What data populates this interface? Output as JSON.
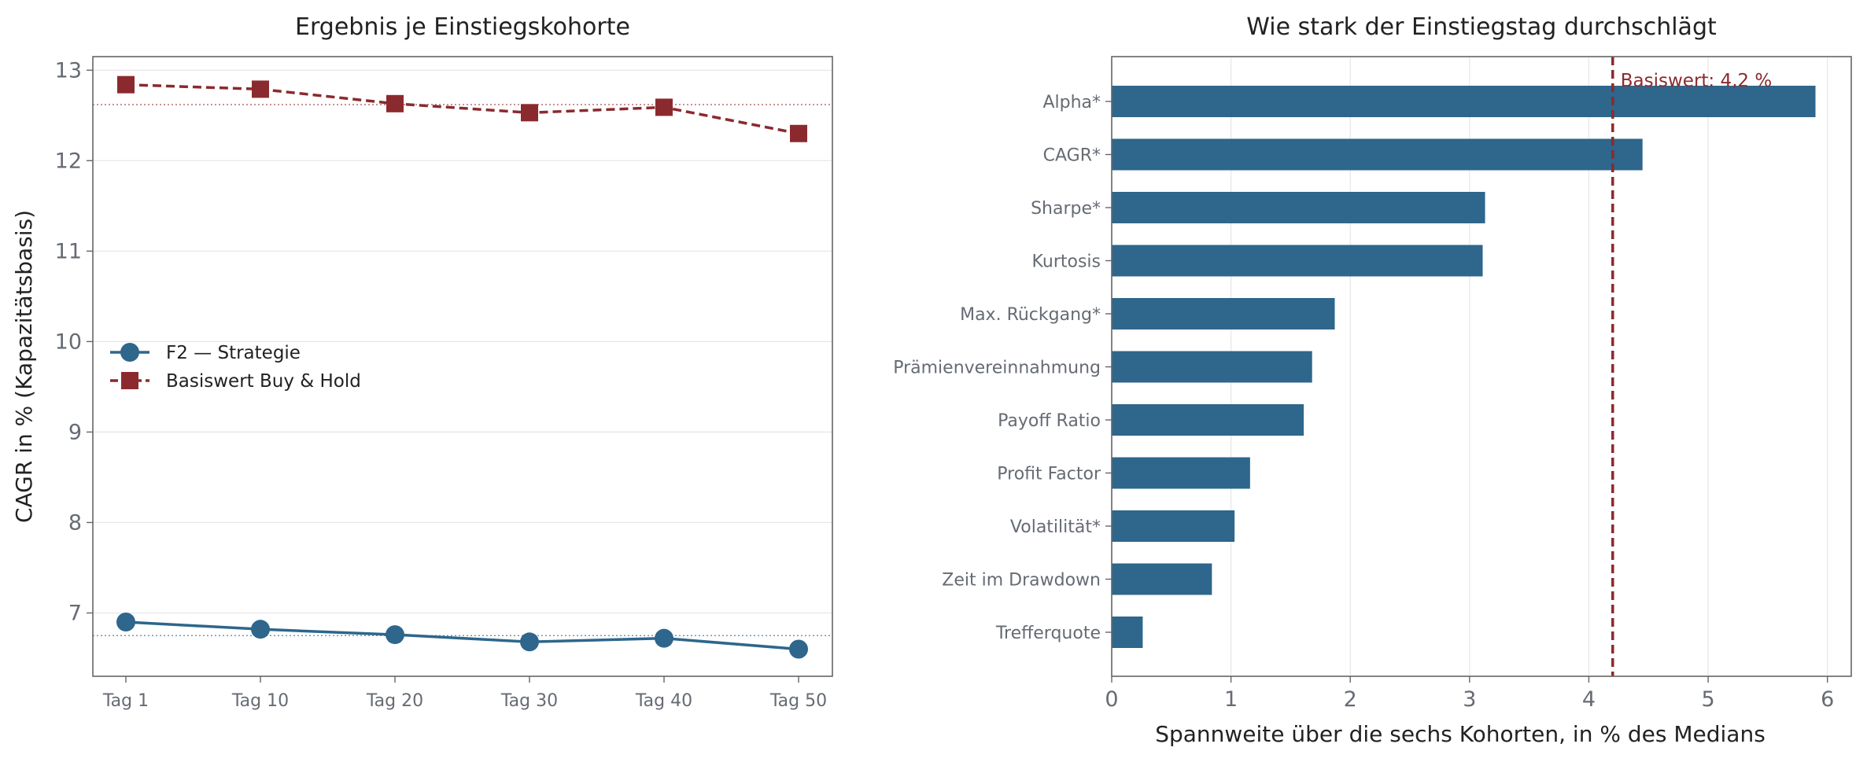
{
  "colors": {
    "strategy": "#2e668c",
    "benchmark": "#8b2a2e",
    "axis": "#666666",
    "tick_text": "#666b73",
    "grid": "#e6e6e6",
    "title_text": "#222222"
  },
  "chart_data": [
    {
      "type": "line",
      "title": "Ergebnis je Einstiegskohorte",
      "xlabel": "",
      "ylabel": "CAGR in % (Kapazitätsbasis)",
      "categories": [
        "Tag 1",
        "Tag 10",
        "Tag 20",
        "Tag 30",
        "Tag 40",
        "Tag 50"
      ],
      "ylim": [
        6.3,
        13.15
      ],
      "yticks": [
        7,
        8,
        9,
        10,
        11,
        12,
        13
      ],
      "grid": "horizontal",
      "legend": "center-left",
      "series": [
        {
          "name": "F2 — Strategie",
          "values": [
            6.9,
            6.82,
            6.76,
            6.68,
            6.72,
            6.6
          ],
          "color": "#2e668c",
          "style": "solid",
          "marker": "circle",
          "reference": 6.75
        },
        {
          "name": "Basiswert Buy & Hold",
          "values": [
            12.84,
            12.79,
            12.63,
            12.53,
            12.59,
            12.3
          ],
          "color": "#8b2a2e",
          "style": "dashed",
          "marker": "square",
          "reference": 12.62
        }
      ]
    },
    {
      "type": "bar",
      "orientation": "horizontal",
      "title": "Wie stark der Einstiegstag durchschlägt",
      "xlabel": "Spannweite über die sechs Kohorten, in % des Medians",
      "ylabel": "",
      "categories": [
        "Alpha*",
        "CAGR*",
        "Sharpe*",
        "Kurtosis",
        "Max. Rückgang*",
        "Prämienvereinnahmung",
        "Payoff Ratio",
        "Profit Factor",
        "Volatilität*",
        "Zeit im Drawdown",
        "Trefferquote"
      ],
      "values": [
        5.9,
        4.45,
        3.13,
        3.11,
        1.87,
        1.68,
        1.61,
        1.16,
        1.03,
        0.84,
        0.26
      ],
      "xlim": [
        0,
        6.2
      ],
      "xticks": [
        0,
        1,
        2,
        3,
        4,
        5,
        6
      ],
      "grid": "vertical",
      "bar_color": "#2e668c",
      "reference_line": {
        "value": 4.2,
        "label": "Basiswert: 4,2 %",
        "color": "#8b2a2e"
      }
    }
  ]
}
